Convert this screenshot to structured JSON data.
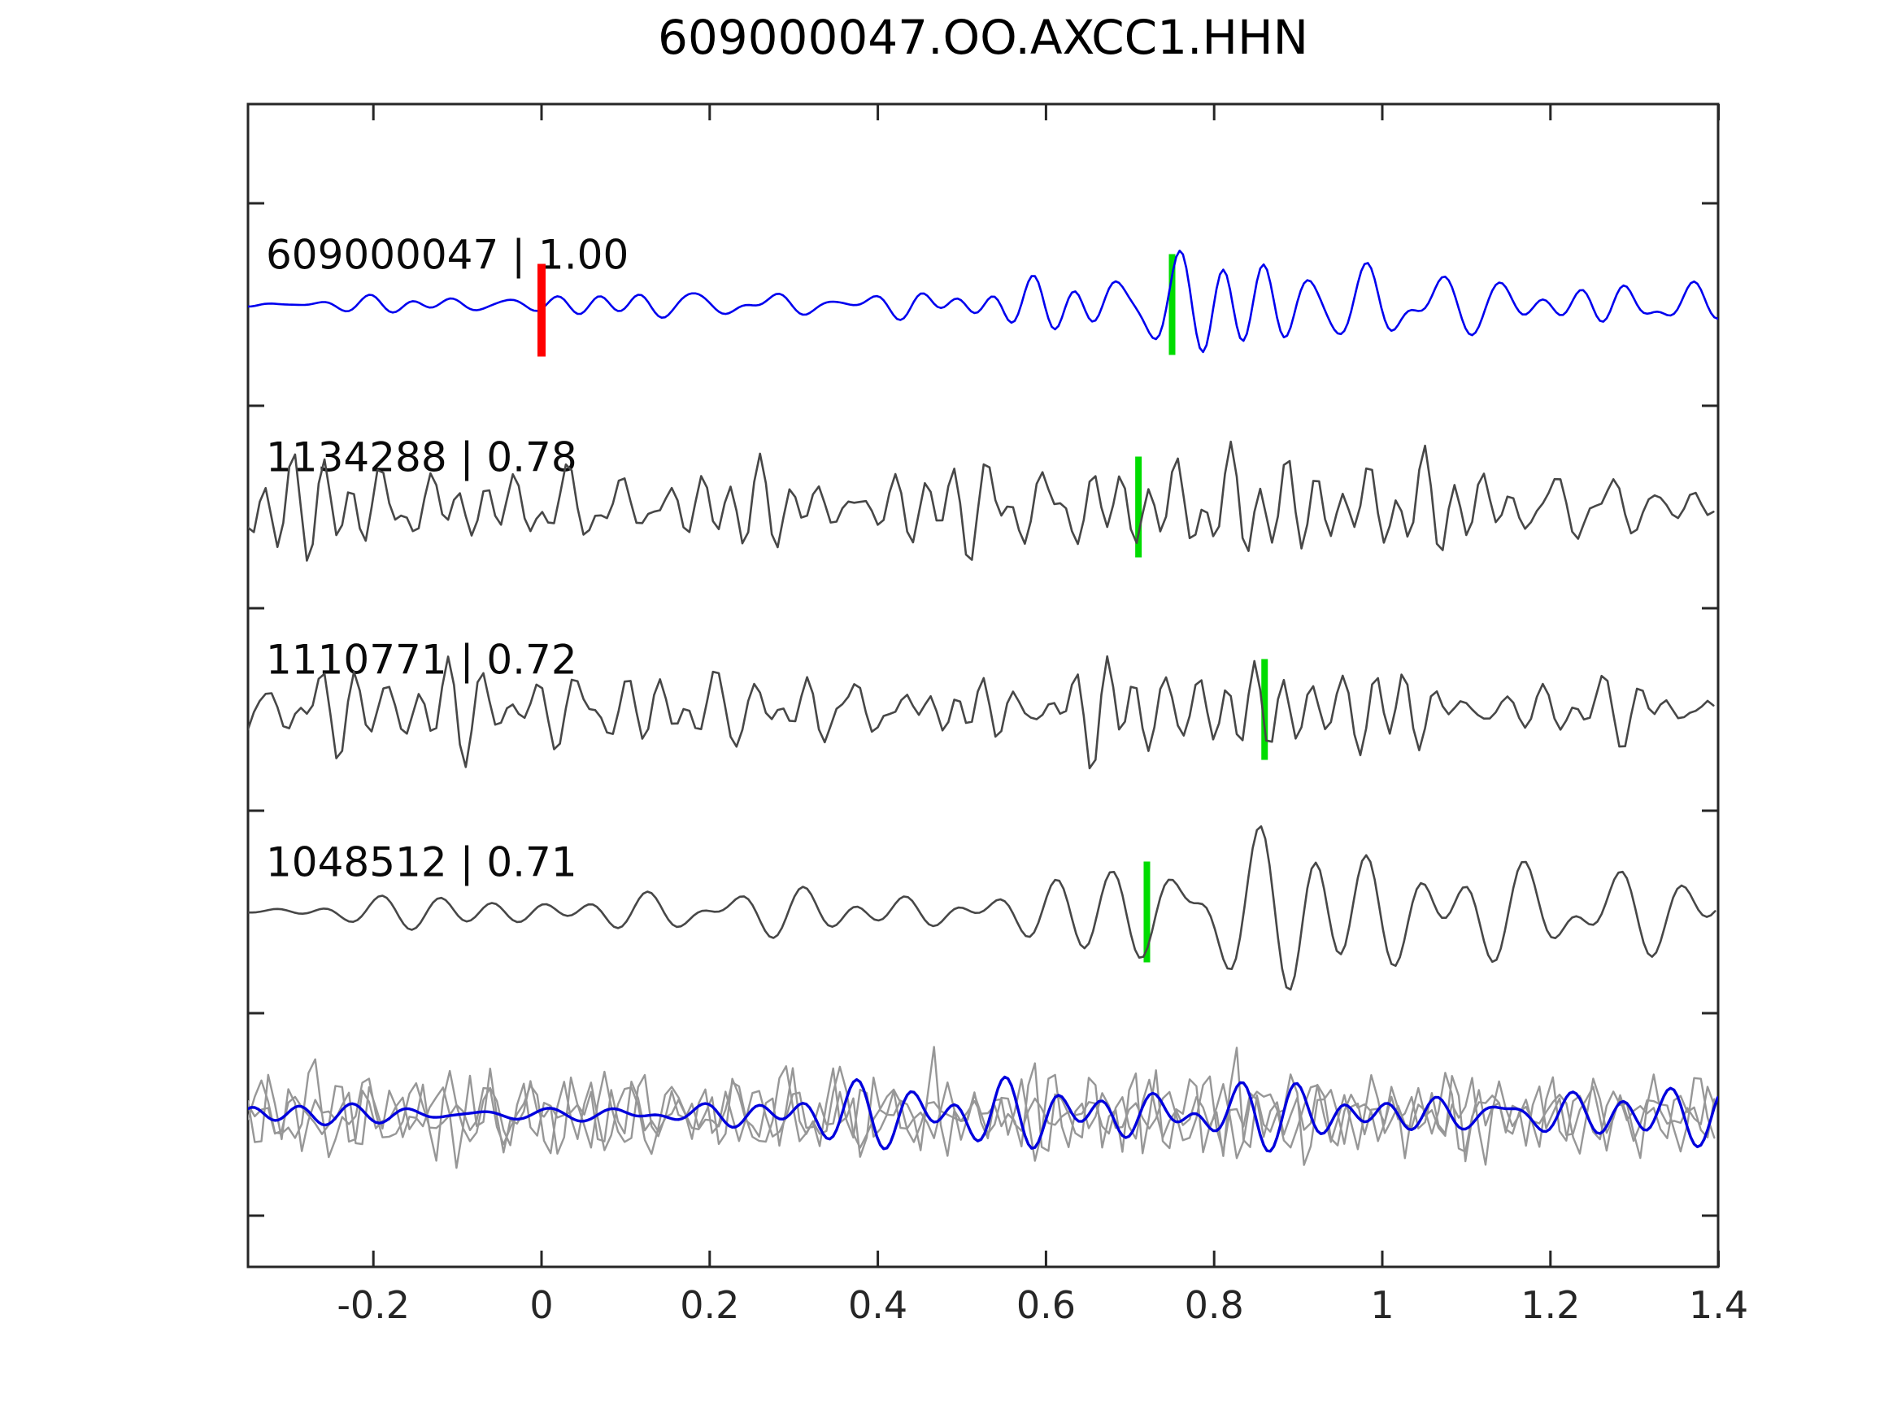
{
  "title": "609000047.OO.AXCC1.HHN",
  "colors": {
    "detection_trace": "#0000ee",
    "template_trace": "#474747",
    "overlay_trace": "#979797",
    "overlay_detection": "#0000dd",
    "pick_marker": "#00dc00",
    "origin_marker": "#ff0000",
    "axis": "#262626",
    "background": "#ffffff",
    "title_text": "#000000",
    "label_text": "#0a0a0a"
  },
  "chart_data": {
    "type": "line",
    "title": "609000047.OO.AXCC1.HHN",
    "xlabel": "",
    "ylabel": "",
    "xlim": [
      -0.35,
      1.4
    ],
    "xticks": [
      "-0.2",
      "0",
      "0.2",
      "0.4",
      "0.6",
      "0.8",
      "1",
      "1.2",
      "1.4"
    ],
    "xtick_values": [
      -0.2,
      0,
      0.2,
      0.4,
      0.6,
      0.8,
      1,
      1.2,
      1.4
    ],
    "grid": false,
    "legend": false,
    "n_rows": 5,
    "traces": [
      {
        "label": "609000047 | 1.00",
        "event_id": "609000047",
        "correlation": "1.00",
        "row": 0,
        "color_key": "detection_trace",
        "character": "smooth low-frequency detection waveform, amplitude grows after t=0",
        "origin_marker": {
          "x": 0.0,
          "color_key": "origin_marker"
        },
        "pick_marker": {
          "x": 0.75,
          "color_key": "pick_marker"
        }
      },
      {
        "label": "1134288 | 0.78",
        "event_id": "1134288",
        "correlation": "0.78",
        "row": 1,
        "color_key": "template_trace",
        "character": "high-frequency template waveform, uniform amplitude",
        "pick_marker": {
          "x": 0.71,
          "color_key": "pick_marker"
        }
      },
      {
        "label": "1110771 | 0.72",
        "event_id": "1110771",
        "correlation": "0.72",
        "row": 2,
        "color_key": "template_trace",
        "character": "high-frequency template waveform, uniform amplitude",
        "pick_marker": {
          "x": 0.86,
          "color_key": "pick_marker"
        }
      },
      {
        "label": "1048512 | 0.71",
        "event_id": "1048512",
        "correlation": "0.71",
        "row": 3,
        "color_key": "template_trace",
        "character": "smooth low-frequency template waveform, large swings near t=0.8-1.0",
        "pick_marker": {
          "x": 0.72,
          "color_key": "pick_marker"
        }
      },
      {
        "label": "",
        "event_id": "",
        "correlation": "",
        "row": 4,
        "color_key": "overlay_trace",
        "character": "overlay panel: 3 gray template traces superimposed with blue detection trace",
        "overlay_gray_count": 3
      }
    ]
  }
}
